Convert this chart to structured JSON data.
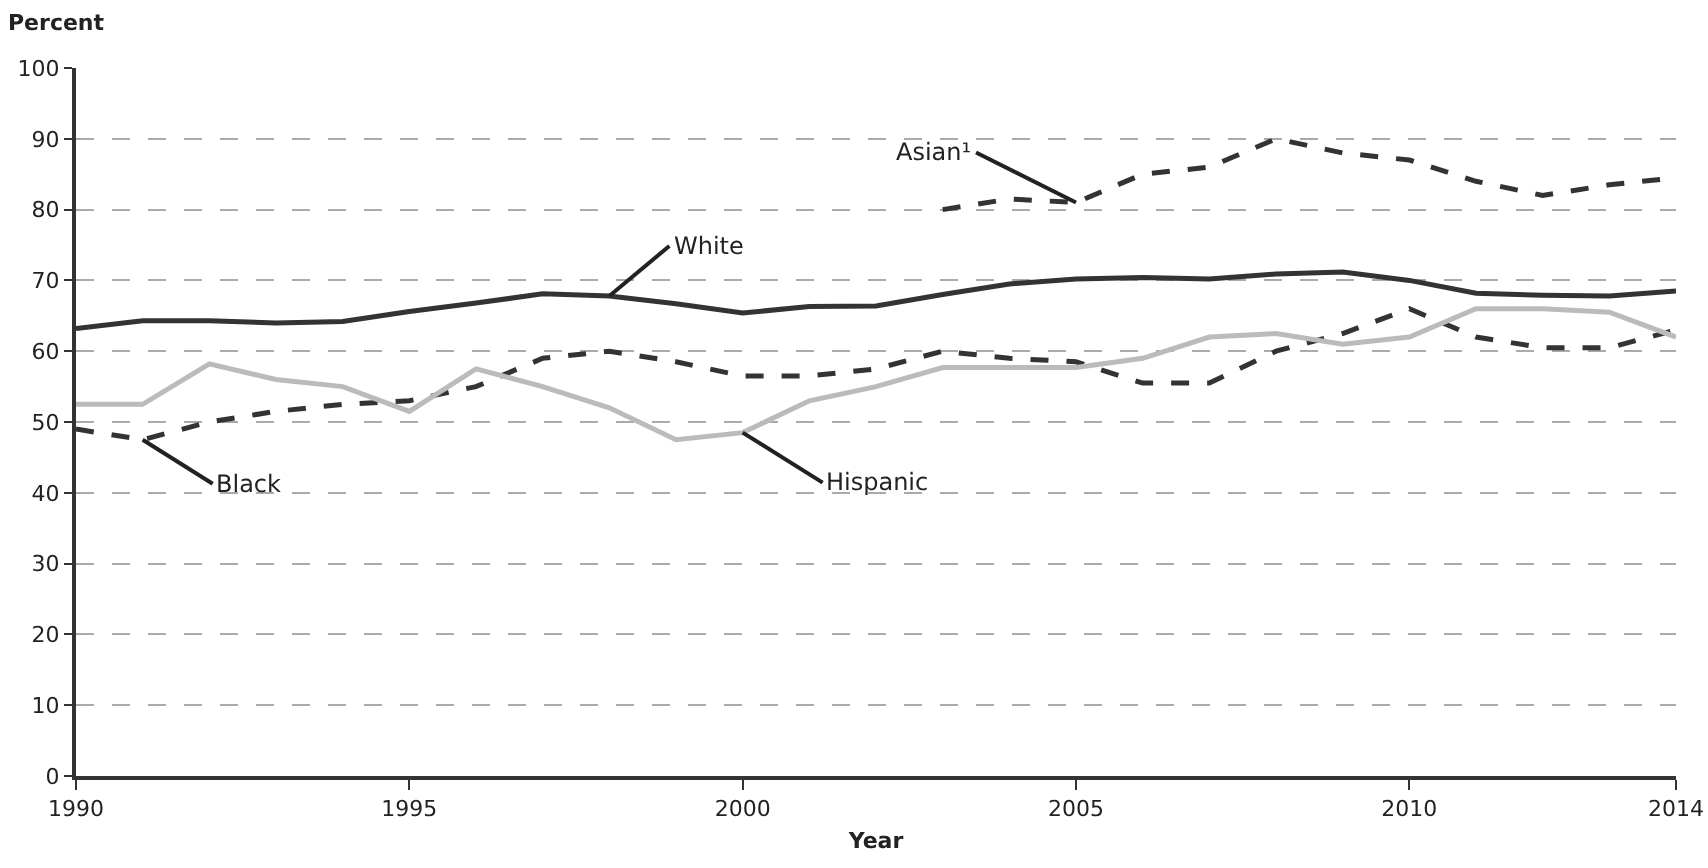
{
  "chart_data": {
    "type": "line",
    "xlabel": "Year",
    "ylabel": "Percent",
    "x": [
      1990,
      1991,
      1992,
      1993,
      1994,
      1995,
      1996,
      1997,
      1998,
      1999,
      2000,
      2001,
      2002,
      2003,
      2004,
      2005,
      2006,
      2007,
      2008,
      2009,
      2010,
      2011,
      2012,
      2013,
      2014
    ],
    "series": [
      {
        "name": "White",
        "color": "#333333",
        "line_style": "solid",
        "values": [
          63.2,
          64.3,
          64.3,
          64,
          64.2,
          65.6,
          66.8,
          68.1,
          67.8,
          66.7,
          65.4,
          66.3,
          66.4,
          68,
          69.5,
          70.2,
          70.4,
          70.2,
          70.9,
          71.2,
          70,
          68.2,
          67.9,
          67.8,
          68.5
        ]
      },
      {
        "name": "Black",
        "color": "#333333",
        "line_style": "dashed",
        "values": [
          49,
          47.5,
          50,
          51.5,
          52.5,
          53,
          55,
          59,
          60,
          58.5,
          56.5,
          56.5,
          57.5,
          60,
          59,
          58.5,
          55.5,
          55.5,
          60,
          62.5,
          66,
          62,
          60.5,
          60.5,
          63
        ]
      },
      {
        "name": "Hispanic",
        "color": "#bbbbbb",
        "line_style": "solid",
        "values": [
          52.5,
          52.5,
          58.2,
          56,
          55,
          51.5,
          57.5,
          55,
          52,
          47.5,
          48.5,
          53,
          55,
          57.7,
          57.7,
          57.7,
          59,
          62,
          62.5,
          61,
          62,
          66,
          66,
          65.5,
          62
        ]
      },
      {
        "name": "Asian¹",
        "color": "#333333",
        "line_style": "dashed",
        "values": [
          null,
          null,
          null,
          null,
          null,
          null,
          null,
          null,
          null,
          null,
          null,
          null,
          null,
          80,
          81.5,
          81,
          85,
          86,
          90,
          88,
          87,
          84,
          82,
          83.5,
          84.5
        ]
      }
    ],
    "xlim": [
      1990,
      2014
    ],
    "xticks": [
      1990,
      1995,
      2000,
      2005,
      2010,
      2014
    ],
    "ylim": [
      0,
      100
    ],
    "yticks": [
      0,
      10,
      20,
      30,
      40,
      50,
      60,
      70,
      80,
      90,
      100
    ],
    "grid": "y",
    "legend": false,
    "marker": "none"
  }
}
